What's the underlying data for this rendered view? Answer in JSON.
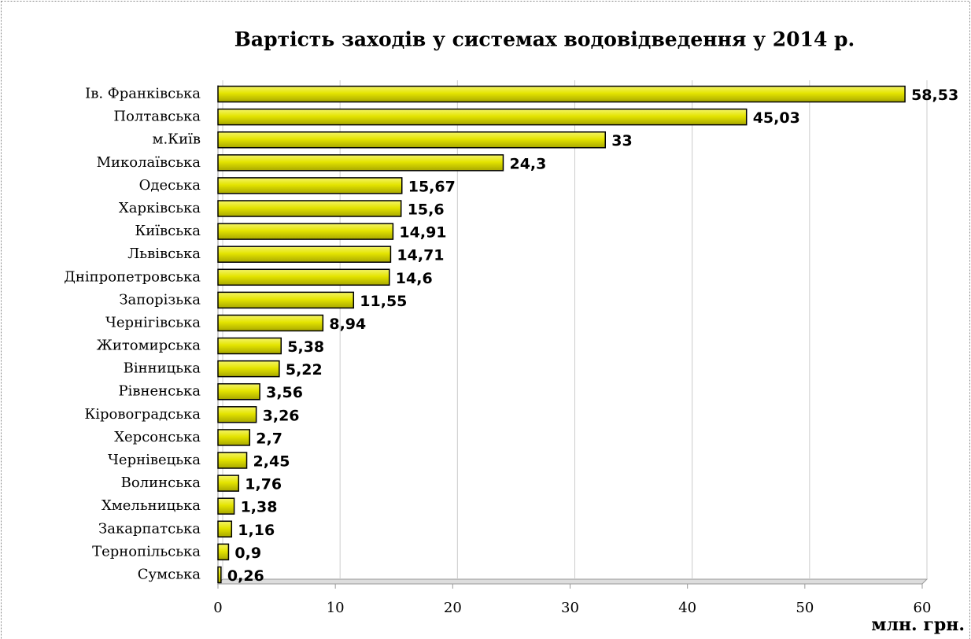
{
  "chart_data": {
    "type": "barh",
    "title": "Вартість заходів у системах водовідведення у 2014 р.",
    "x_label": "млн. грн.",
    "categories": [
      "Ів. Франківська",
      "Полтавська",
      "м.Київ",
      "Миколаївська",
      "Одеська",
      "Харківська",
      "Київська",
      "Львівська",
      "Дніпропетровська",
      "Запорізька",
      "Чернігівська",
      "Житомирська",
      "Вінницька",
      "Рівненська",
      "Кіровоградська",
      "Херсонська",
      "Чернівецька",
      "Волинська",
      "Хмельницька",
      "Закарпатська",
      "Тернопільська",
      "Сумська"
    ],
    "values": [
      58.53,
      45.03,
      33,
      24.3,
      15.67,
      15.6,
      14.91,
      14.71,
      14.6,
      11.55,
      8.94,
      5.38,
      5.22,
      3.56,
      3.26,
      2.7,
      2.45,
      1.76,
      1.38,
      1.16,
      0.9,
      0.26
    ],
    "value_labels": [
      "58,53",
      "45,03",
      "33",
      "24,3",
      "15,67",
      "15,6",
      "14,91",
      "14,71",
      "14,6",
      "11,55",
      "8,94",
      "5,38",
      "5,22",
      "3,56",
      "3,26",
      "2,7",
      "2,45",
      "1,76",
      "1,38",
      "1,16",
      "0,9",
      "0,26"
    ],
    "color": "#e0e000",
    "xlim": [
      0,
      60
    ],
    "xticks": [
      0,
      10,
      20,
      30,
      40,
      50,
      60
    ],
    "grid": true
  }
}
